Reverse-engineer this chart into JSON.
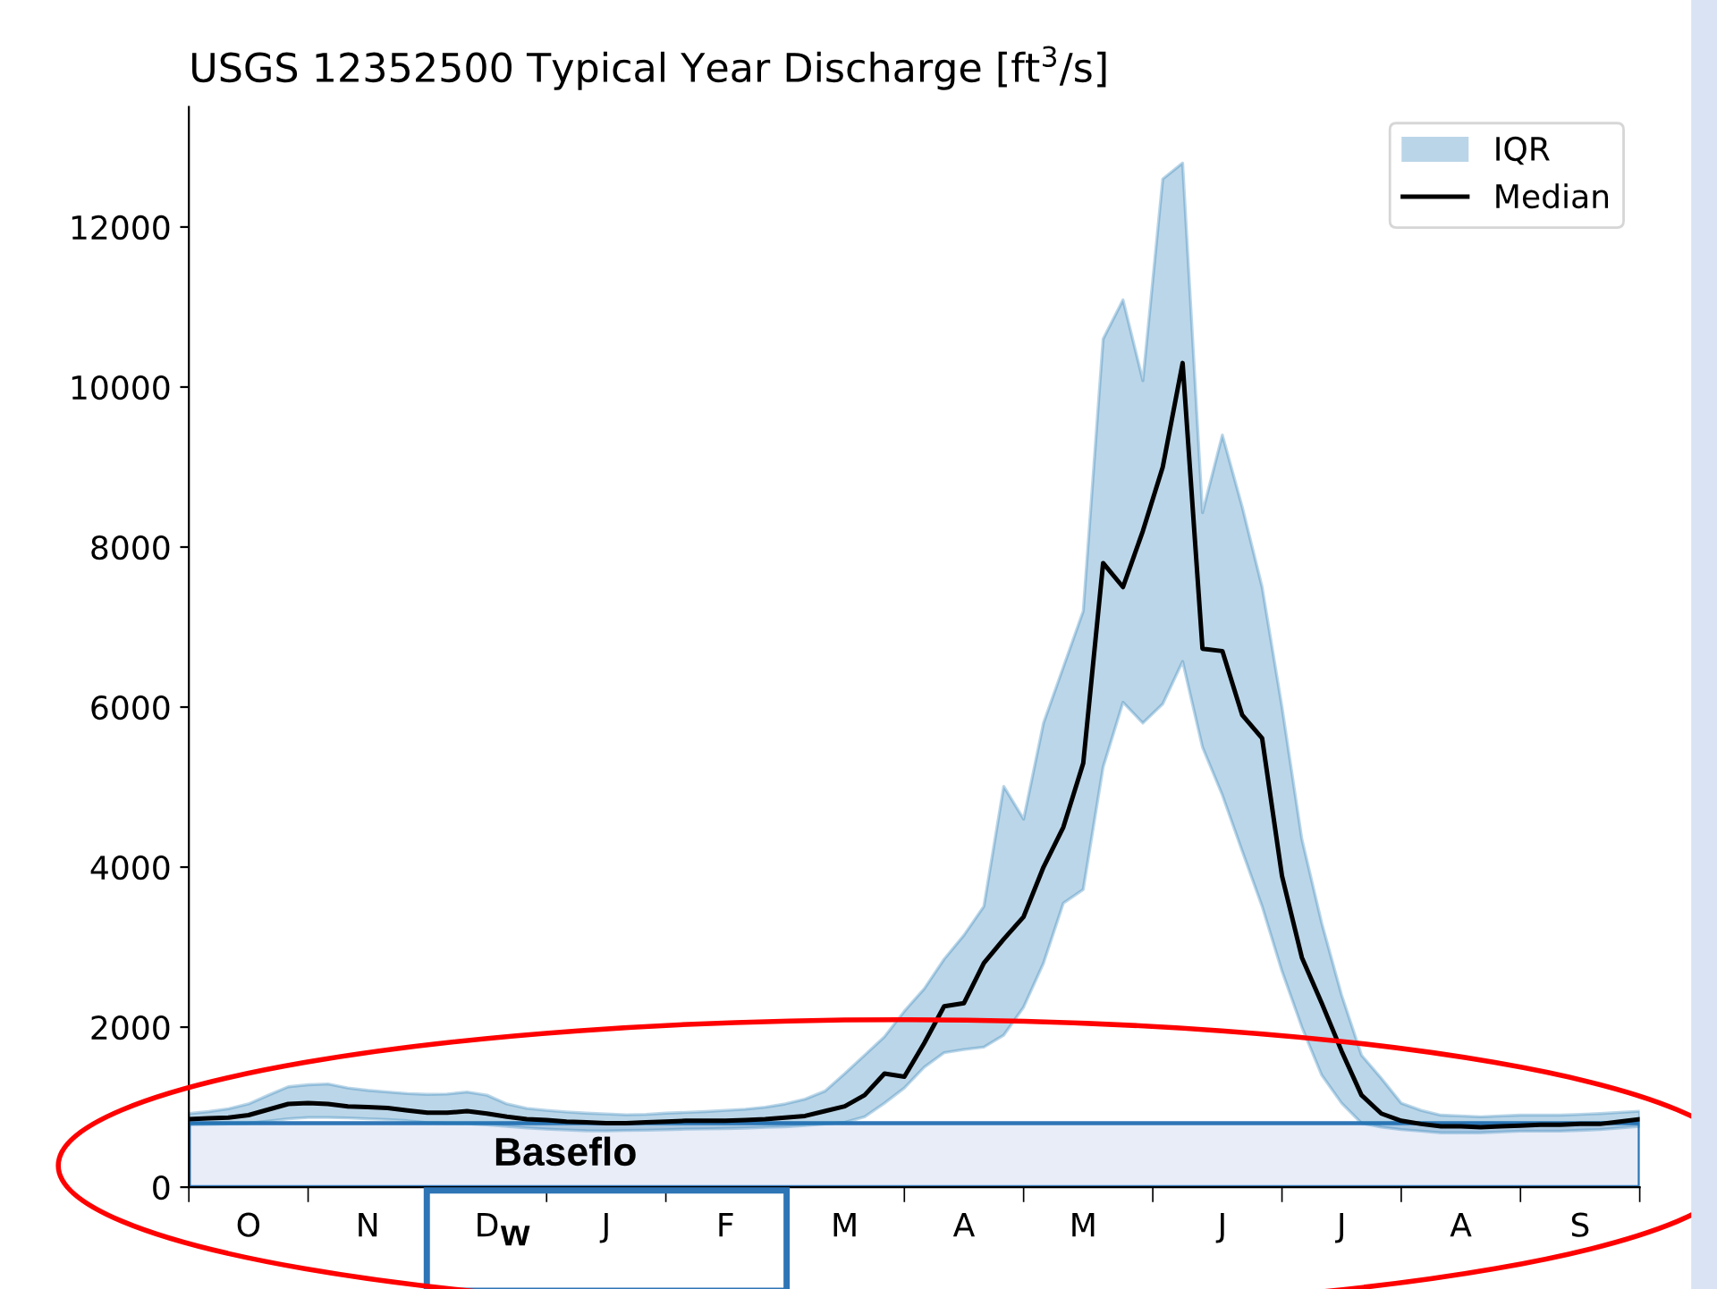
{
  "chart_data": {
    "type": "line",
    "title": "USGS 12352500 Typical Year Discharge [ft$^{3}$/s]",
    "categories": [
      null,
      null,
      null,
      "O",
      null,
      null,
      null,
      null,
      null,
      "N",
      null,
      null,
      null,
      null,
      null,
      "D",
      null,
      null,
      null,
      null,
      null,
      "J",
      null,
      null,
      null,
      null,
      null,
      "F",
      null,
      null,
      null,
      null,
      null,
      "M",
      null,
      null,
      null,
      null,
      null,
      "A",
      null,
      null,
      null,
      null,
      null,
      "M",
      null,
      null,
      null,
      null,
      null,
      null,
      "J",
      null,
      null,
      null,
      null,
      null,
      "J",
      null,
      null,
      null,
      null,
      null,
      "A",
      null,
      null,
      null,
      null,
      null,
      "S",
      null,
      null,
      null
    ],
    "series": [
      {
        "name": "Median",
        "color": "#000000",
        "values": [
          850,
          860,
          870,
          900,
          970,
          1040,
          1050,
          1040,
          1010,
          1000,
          990,
          960,
          930,
          930,
          950,
          920,
          880,
          850,
          840,
          820,
          810,
          800,
          800,
          810,
          820,
          830,
          830,
          830,
          840,
          850,
          870,
          890,
          950,
          1010,
          1150,
          1420,
          1380,
          1800,
          2260,
          2300,
          2800,
          3100,
          3380,
          4000,
          4500,
          5300,
          7800,
          7500,
          8200,
          9000,
          10300,
          6730,
          6700,
          5900,
          5610,
          3890,
          2870,
          2300,
          1700,
          1150,
          920,
          830,
          790,
          760,
          760,
          750,
          760,
          770,
          780,
          780,
          790,
          790,
          820,
          850
        ],
        "lower": [
          780,
          785,
          790,
          800,
          825,
          855,
          870,
          870,
          865,
          855,
          845,
          830,
          805,
          797,
          792,
          780,
          760,
          740,
          725,
          715,
          705,
          703,
          708,
          712,
          718,
          725,
          728,
          733,
          738,
          748,
          755,
          770,
          790,
          810,
          880,
          1050,
          1240,
          1500,
          1680,
          1720,
          1750,
          1900,
          2250,
          2800,
          3550,
          3720,
          5250,
          6060,
          5800,
          6040,
          6570,
          5500,
          4900,
          4200,
          3510,
          2700,
          2000,
          1400,
          1050,
          800,
          750,
          720,
          700,
          680,
          680,
          680,
          690,
          700,
          700,
          700,
          710,
          720,
          740,
          760
        ],
        "upper": [
          920,
          945,
          980,
          1040,
          1150,
          1255,
          1280,
          1290,
          1240,
          1210,
          1190,
          1170,
          1160,
          1165,
          1190,
          1150,
          1040,
          985,
          960,
          940,
          925,
          915,
          905,
          910,
          925,
          935,
          945,
          960,
          975,
          1000,
          1040,
          1100,
          1200,
          1420,
          1650,
          1880,
          2200,
          2480,
          2850,
          3150,
          3510,
          5010,
          4600,
          5800,
          6500,
          7200,
          10600,
          11090,
          10080,
          12600,
          12800,
          8430,
          9400,
          8500,
          7500,
          6000,
          4350,
          3300,
          2400,
          1650,
          1360,
          1050,
          960,
          900,
          890,
          880,
          890,
          900,
          900,
          900,
          910,
          920,
          935,
          950
        ]
      }
    ],
    "ylim": [
      0,
      13500
    ],
    "yticks": [
      0,
      2000,
      4000,
      6000,
      8000,
      10000,
      12000
    ],
    "bands": [
      {
        "axis": "y",
        "from": 0,
        "to": 800,
        "label": "Baseflo",
        "color": "#e8edf8"
      }
    ],
    "annotations": [
      "w",
      "IQR"
    ],
    "legend": "top right",
    "grid": false
  }
}
